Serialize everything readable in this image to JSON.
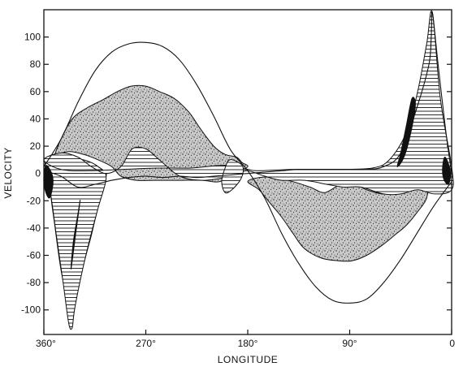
{
  "chart_data": {
    "type": "line",
    "title": "",
    "xlabel": "LONGITUDE",
    "ylabel": "VELOCITY",
    "x_reversed": true,
    "xlim": [
      360,
      0
    ],
    "ylim": [
      -118,
      120
    ],
    "x_ticks": [
      {
        "value": 360,
        "label": "360°"
      },
      {
        "value": 270,
        "label": "270°"
      },
      {
        "value": 180,
        "label": "180°"
      },
      {
        "value": 90,
        "label": "90°"
      },
      {
        "value": 0,
        "label": "0"
      }
    ],
    "y_ticks": [
      {
        "value": 100,
        "label": "100"
      },
      {
        "value": 80,
        "label": "80"
      },
      {
        "value": 60,
        "label": "60"
      },
      {
        "value": 40,
        "label": "40"
      },
      {
        "value": 20,
        "label": "20"
      },
      {
        "value": 0,
        "label": "0"
      },
      {
        "value": -20,
        "label": "-20"
      },
      {
        "value": -40,
        "label": "-40"
      },
      {
        "value": -60,
        "label": "-60"
      },
      {
        "value": -80,
        "label": "-80"
      },
      {
        "value": -100,
        "label": "-100"
      }
    ],
    "outer_envelope": [
      [
        360,
        5
      ],
      [
        345,
        25
      ],
      [
        330,
        52
      ],
      [
        315,
        75
      ],
      [
        300,
        89
      ],
      [
        285,
        95
      ],
      [
        270,
        96
      ],
      [
        255,
        93
      ],
      [
        240,
        83
      ],
      [
        225,
        65
      ],
      [
        210,
        42
      ],
      [
        195,
        17
      ],
      [
        180,
        2
      ],
      [
        165,
        -18
      ],
      [
        150,
        -44
      ],
      [
        135,
        -66
      ],
      [
        120,
        -83
      ],
      [
        105,
        -93
      ],
      [
        90,
        -95
      ],
      [
        75,
        -92
      ],
      [
        60,
        -80
      ],
      [
        45,
        -63
      ],
      [
        30,
        -43
      ],
      [
        15,
        -23
      ],
      [
        0,
        -6
      ]
    ],
    "inner_envelope": [
      [
        360,
        2
      ],
      [
        345,
        -2
      ],
      [
        330,
        -10
      ],
      [
        315,
        -8
      ],
      [
        300,
        -5
      ],
      [
        285,
        -3
      ],
      [
        270,
        -2
      ],
      [
        255,
        -3
      ],
      [
        240,
        -2
      ],
      [
        225,
        -3
      ],
      [
        210,
        -2
      ],
      [
        195,
        -1
      ],
      [
        180,
        0
      ],
      [
        165,
        1
      ],
      [
        150,
        2
      ],
      [
        135,
        3
      ],
      [
        120,
        3
      ],
      [
        105,
        3
      ],
      [
        90,
        3
      ],
      [
        75,
        3
      ],
      [
        60,
        5
      ],
      [
        45,
        15
      ],
      [
        30,
        50
      ],
      [
        20,
        80
      ],
      [
        18,
        100
      ],
      [
        17,
        118
      ],
      [
        12,
        80
      ],
      [
        5,
        30
      ],
      [
        0,
        0
      ]
    ],
    "stippled_regions": [
      {
        "name": "",
        "outline": [
          [
            352,
            10
          ],
          [
            345,
            25
          ],
          [
            335,
            40
          ],
          [
            322,
            48
          ],
          [
            308,
            54
          ],
          [
            295,
            60
          ],
          [
            283,
            64
          ],
          [
            270,
            64
          ],
          [
            258,
            60
          ],
          [
            245,
            55
          ],
          [
            232,
            45
          ],
          [
            222,
            33
          ],
          [
            210,
            20
          ],
          [
            200,
            14
          ],
          [
            190,
            12
          ],
          [
            185,
            8
          ],
          [
            180,
            5
          ],
          [
            190,
            0
          ],
          [
            205,
            -6
          ],
          [
            220,
            -5
          ],
          [
            240,
            -5
          ],
          [
            262,
            -5
          ],
          [
            278,
            -5
          ],
          [
            292,
            -2
          ],
          [
            300,
            5
          ],
          [
            312,
            10
          ],
          [
            325,
            14
          ],
          [
            338,
            16
          ],
          [
            350,
            13
          ]
        ]
      },
      {
        "name": "",
        "outline": [
          [
            180,
            -6
          ],
          [
            170,
            -12
          ],
          [
            160,
            -22
          ],
          [
            150,
            -32
          ],
          [
            140,
            -44
          ],
          [
            130,
            -55
          ],
          [
            115,
            -62
          ],
          [
            100,
            -64
          ],
          [
            88,
            -64
          ],
          [
            75,
            -60
          ],
          [
            62,
            -53
          ],
          [
            50,
            -45
          ],
          [
            40,
            -38
          ],
          [
            30,
            -28
          ],
          [
            22,
            -18
          ],
          [
            22,
            -6
          ],
          [
            35,
            -8
          ],
          [
            48,
            -12
          ],
          [
            60,
            -15
          ],
          [
            75,
            -12
          ],
          [
            85,
            -8
          ],
          [
            98,
            -8
          ],
          [
            112,
            -14
          ],
          [
            125,
            -10
          ],
          [
            140,
            -6
          ],
          [
            155,
            -3
          ],
          [
            170,
            -3
          ]
        ]
      },
      {
        "name": "",
        "outline": [
          [
            354,
            -10
          ],
          [
            350,
            -40
          ],
          [
            345,
            -70
          ],
          [
            339,
            -95
          ],
          [
            336,
            -113
          ],
          [
            332,
            -95
          ],
          [
            326,
            -70
          ],
          [
            318,
            -45
          ],
          [
            311,
            -20
          ],
          [
            305,
            0
          ],
          [
            318,
            -10
          ],
          [
            332,
            -15
          ],
          [
            345,
            -8
          ]
        ]
      }
    ],
    "hatched_regions": [
      {
        "name": "",
        "outline": [
          [
            359,
            8
          ],
          [
            354,
            -15
          ],
          [
            349,
            -45
          ],
          [
            343,
            -80
          ],
          [
            338,
            -110
          ],
          [
            335,
            -113
          ],
          [
            333,
            -100
          ],
          [
            327,
            -75
          ],
          [
            320,
            -50
          ],
          [
            312,
            -25
          ],
          [
            305,
            -3
          ],
          [
            312,
            5
          ],
          [
            325,
            10
          ],
          [
            340,
            11
          ],
          [
            352,
            10
          ]
        ]
      },
      {
        "name": "",
        "outline": [
          [
            360,
            10
          ],
          [
            345,
            15
          ],
          [
            330,
            12
          ],
          [
            318,
            5
          ],
          [
            305,
            0
          ],
          [
            292,
            5
          ],
          [
            282,
            18
          ],
          [
            270,
            18
          ],
          [
            258,
            10
          ],
          [
            240,
            -2
          ],
          [
            220,
            -5
          ],
          [
            200,
            -3
          ],
          [
            188,
            0
          ],
          [
            180,
            2
          ],
          [
            165,
            -2
          ],
          [
            150,
            -5
          ],
          [
            130,
            -5
          ],
          [
            110,
            -8
          ],
          [
            95,
            -10
          ],
          [
            80,
            -10
          ],
          [
            60,
            -15
          ],
          [
            45,
            -15
          ],
          [
            30,
            -12
          ],
          [
            15,
            -15
          ],
          [
            0,
            -12
          ],
          [
            0,
            5
          ],
          [
            10,
            55
          ],
          [
            17,
            118
          ],
          [
            22,
            95
          ],
          [
            30,
            60
          ],
          [
            40,
            30
          ],
          [
            55,
            10
          ],
          [
            70,
            4
          ],
          [
            100,
            3
          ],
          [
            140,
            3
          ],
          [
            170,
            2
          ],
          [
            180,
            3
          ],
          [
            200,
            6
          ],
          [
            230,
            4
          ],
          [
            260,
            4
          ],
          [
            290,
            3
          ],
          [
            320,
            2
          ],
          [
            345,
            3
          ]
        ]
      },
      {
        "name": "",
        "outline": [
          [
            196,
            10
          ],
          [
            188,
            8
          ],
          [
            184,
            4
          ],
          [
            186,
            -4
          ],
          [
            194,
            -12
          ],
          [
            200,
            -14
          ],
          [
            203,
            -6
          ],
          [
            200,
            4
          ]
        ]
      }
    ],
    "solid_regions": [
      {
        "name": "",
        "outline": [
          [
            358,
            6
          ],
          [
            353,
            0
          ],
          [
            352,
            -8
          ],
          [
            355,
            -18
          ],
          [
            359,
            -12
          ],
          [
            360,
            -2
          ]
        ]
      },
      {
        "name": "",
        "outline": [
          [
            6,
            12
          ],
          [
            2,
            5
          ],
          [
            1,
            -2
          ],
          [
            3,
            -8
          ],
          [
            7,
            -4
          ],
          [
            8,
            4
          ]
        ]
      },
      {
        "name": "",
        "outline": [
          [
            32,
            50
          ],
          [
            36,
            30
          ],
          [
            42,
            12
          ],
          [
            48,
            5
          ],
          [
            45,
            15
          ],
          [
            40,
            35
          ],
          [
            35,
            55
          ]
        ]
      },
      {
        "name": "",
        "outline": [
          [
            328,
            -20
          ],
          [
            332,
            -45
          ],
          [
            336,
            -70
          ],
          [
            334,
            -50
          ],
          [
            330,
            -30
          ]
        ]
      }
    ]
  }
}
